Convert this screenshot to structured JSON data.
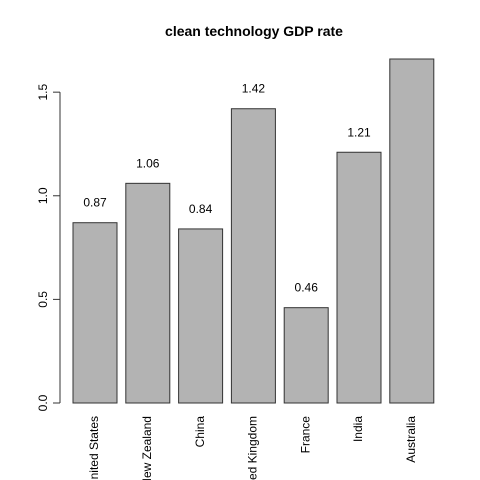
{
  "chart_data": {
    "type": "bar",
    "title": "clean technology GDP rate",
    "categories": [
      "United States",
      "New Zealand",
      "China",
      "United Kingdom",
      "France",
      "India",
      "Australia"
    ],
    "values": [
      0.87,
      1.06,
      0.84,
      1.42,
      0.46,
      1.21,
      1.66
    ],
    "data_labels": [
      "0.87",
      "1.06",
      "0.84",
      "1.42",
      "0.46",
      "1.21",
      ""
    ],
    "y_ticks": [
      0.0,
      0.5,
      1.0,
      1.5
    ],
    "y_tick_labels": [
      "0.0",
      "0.5",
      "1.0",
      "1.5"
    ],
    "ylim": [
      0,
      1.66
    ],
    "xlabel": "",
    "ylabel": "",
    "grid": false,
    "colors": {
      "bar_fill": "#b3b3b3",
      "bar_stroke": "#333333"
    }
  }
}
